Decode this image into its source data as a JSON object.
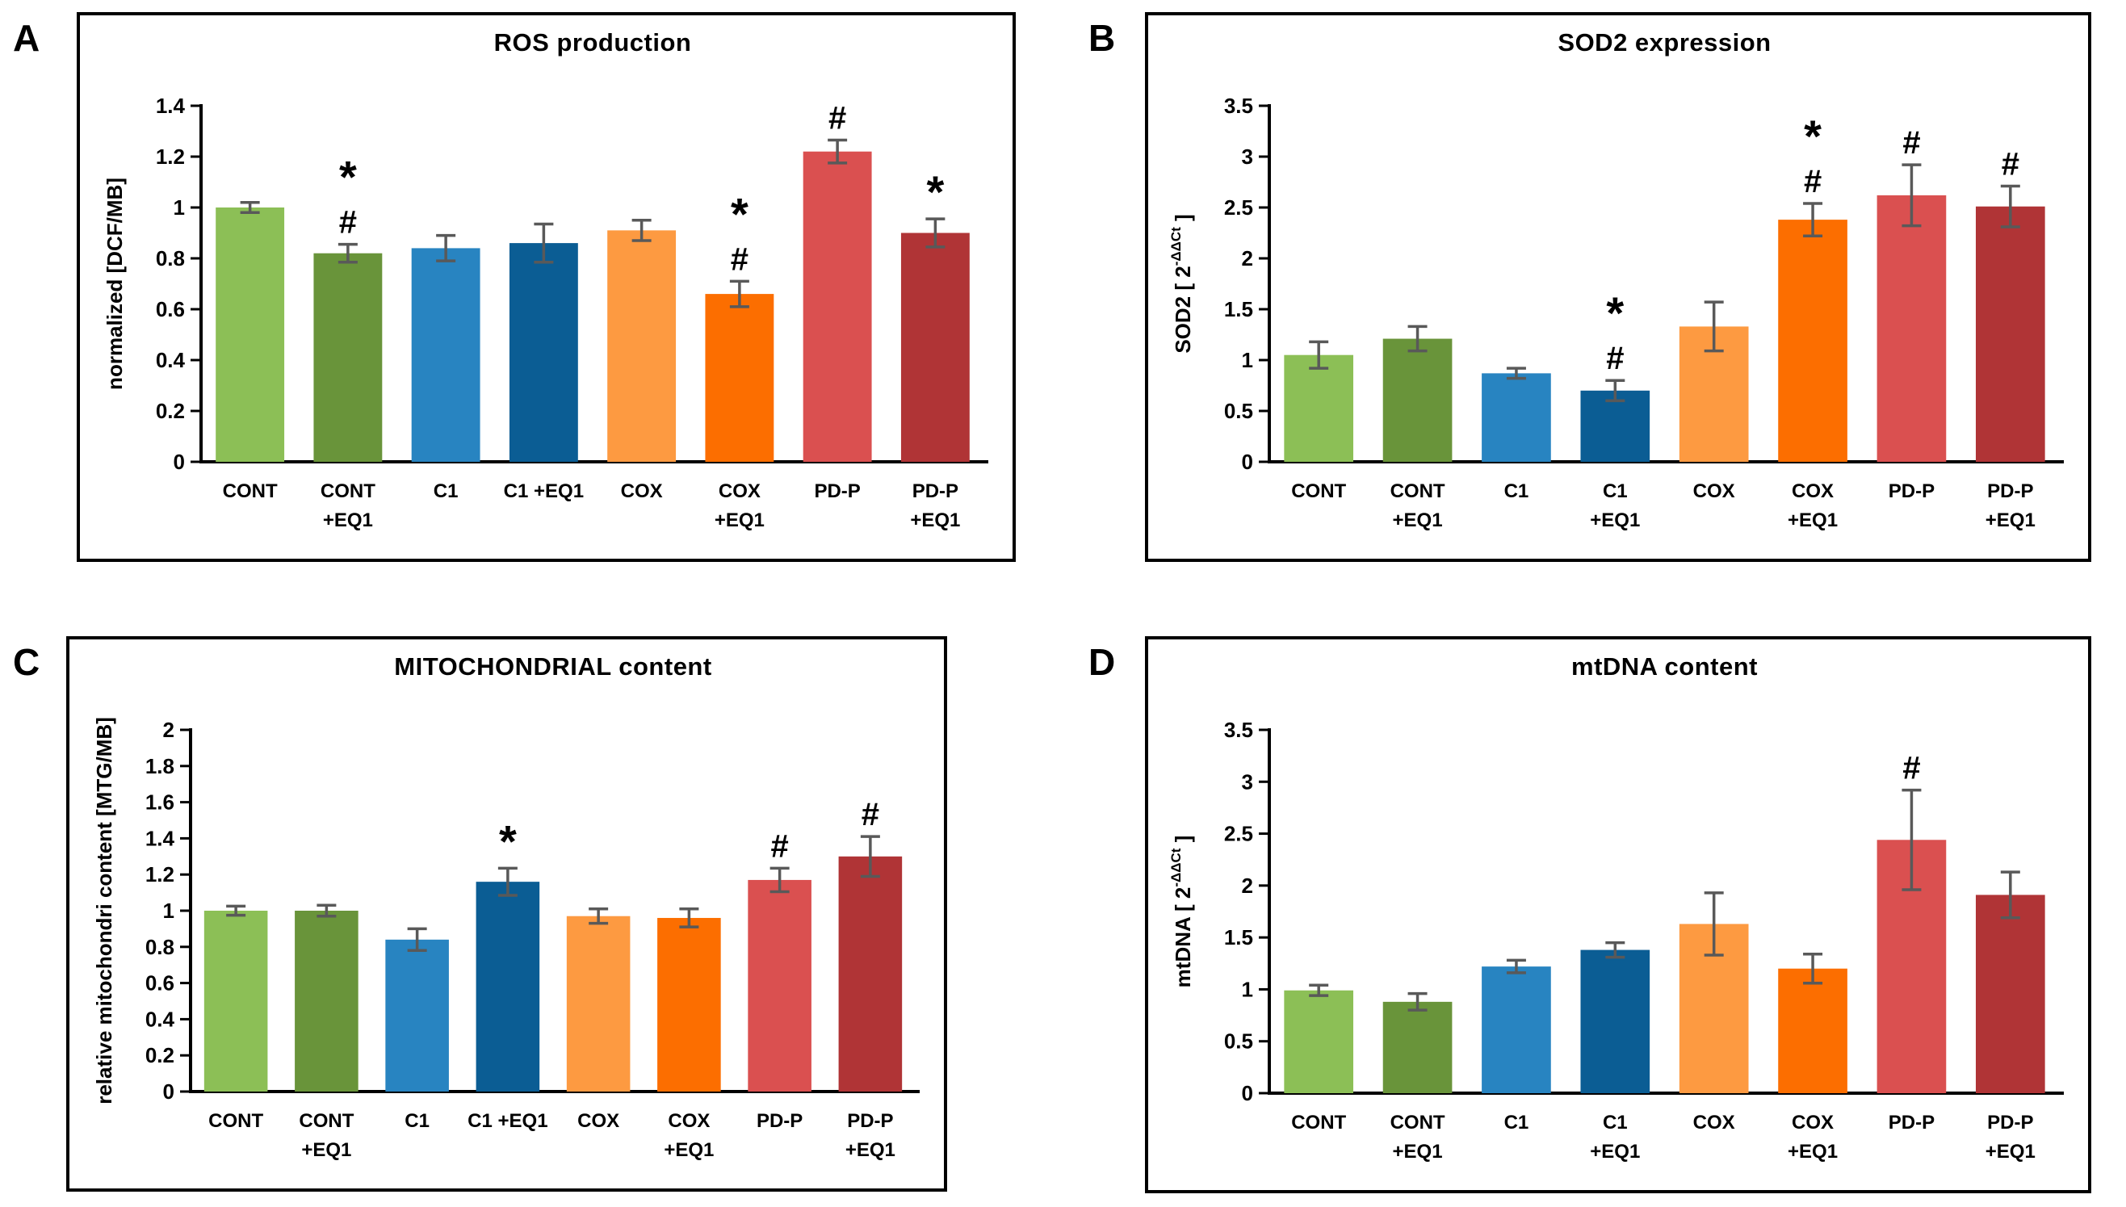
{
  "figure": {
    "background": "#ffffff",
    "axis_color": "#000000",
    "error_bar_color": "#595959",
    "bar_colors": [
      "#8CBF56",
      "#69943A",
      "#2884C1",
      "#0B5D94",
      "#FD9A41",
      "#FC6E00",
      "#DA5050",
      "#B03436"
    ],
    "significance_symbols": {
      "asterisk": "*",
      "hash": "#"
    }
  },
  "chart_data": [
    {
      "panel": "A",
      "type": "bar",
      "title": "ROS production",
      "ylabel_pre": "normalized  [DCF/MB]",
      "ylabel_sup": "",
      "ylabel_post": "",
      "ylim": [
        0,
        1.4
      ],
      "ystep": 0.2,
      "grid": false,
      "legend": "none",
      "categories": [
        "CONT",
        "CONT +EQ1",
        "C1",
        "C1 +EQ1",
        "COX",
        "COX +EQ1",
        "PD-P",
        "PD-P +EQ1"
      ],
      "category_lines": [
        [
          "CONT"
        ],
        [
          "CONT",
          "+EQ1"
        ],
        [
          "C1"
        ],
        [
          "C1 +EQ1"
        ],
        [
          "COX"
        ],
        [
          "COX",
          "+EQ1"
        ],
        [
          "PD-P"
        ],
        [
          "PD-P",
          "+EQ1"
        ]
      ],
      "values": [
        1.0,
        0.82,
        0.84,
        0.86,
        0.91,
        0.66,
        1.22,
        0.9
      ],
      "errors": [
        0.02,
        0.035,
        0.05,
        0.075,
        0.04,
        0.05,
        0.045,
        0.055
      ],
      "annotations": [
        "",
        "*#",
        "",
        "",
        "",
        "*#",
        "#",
        "*"
      ]
    },
    {
      "panel": "B",
      "type": "bar",
      "title": "SOD2 expression",
      "ylabel_pre": "SOD2  [ 2",
      "ylabel_sup": "-ΔΔCt",
      "ylabel_post": " ]",
      "ylim": [
        0,
        3.5
      ],
      "ystep": 0.5,
      "grid": false,
      "legend": "none",
      "categories": [
        "CONT",
        "CONT +EQ1",
        "C1",
        "C1 +EQ1",
        "COX",
        "COX +EQ1",
        "PD-P",
        "PD-P +EQ1"
      ],
      "category_lines": [
        [
          "CONT"
        ],
        [
          "CONT",
          "+EQ1"
        ],
        [
          "C1"
        ],
        [
          "C1",
          "+EQ1"
        ],
        [
          "COX"
        ],
        [
          "COX",
          "+EQ1"
        ],
        [
          "PD-P"
        ],
        [
          "PD-P",
          "+EQ1"
        ]
      ],
      "values": [
        1.05,
        1.21,
        0.87,
        0.7,
        1.33,
        2.38,
        2.62,
        2.51
      ],
      "errors": [
        0.13,
        0.12,
        0.05,
        0.1,
        0.24,
        0.16,
        0.3,
        0.2
      ],
      "annotations": [
        "",
        "",
        "",
        "*#",
        "",
        "*#",
        "#",
        "#"
      ]
    },
    {
      "panel": "C",
      "type": "bar",
      "title": "MITOCHONDRIAL content",
      "ylabel_pre": "relative mitochondri content [MTG/MB]",
      "ylabel_sup": "",
      "ylabel_post": "",
      "ylim": [
        0,
        2
      ],
      "ystep": 0.2,
      "grid": false,
      "legend": "none",
      "categories": [
        "CONT",
        "CONT +EQ1",
        "C1",
        "C1 +EQ1",
        "COX",
        "COX +EQ1",
        "PD-P",
        "PD-P +EQ1"
      ],
      "category_lines": [
        [
          "CONT"
        ],
        [
          "CONT",
          "+EQ1"
        ],
        [
          "C1"
        ],
        [
          "C1 +EQ1"
        ],
        [
          "COX"
        ],
        [
          "COX",
          "+EQ1"
        ],
        [
          "PD-P"
        ],
        [
          "PD-P",
          "+EQ1"
        ]
      ],
      "values": [
        1.0,
        1.0,
        0.84,
        1.16,
        0.97,
        0.96,
        1.17,
        1.3
      ],
      "errors": [
        0.025,
        0.03,
        0.06,
        0.075,
        0.04,
        0.05,
        0.065,
        0.11
      ],
      "annotations": [
        "",
        "",
        "",
        "*",
        "",
        "",
        "#",
        "#"
      ]
    },
    {
      "panel": "D",
      "type": "bar",
      "title": "mtDNA content",
      "ylabel_pre": "mtDNA  [ 2",
      "ylabel_sup": "-ΔΔCt",
      "ylabel_post": " ]",
      "ylim": [
        0,
        3.5
      ],
      "ystep": 0.5,
      "grid": false,
      "legend": "none",
      "categories": [
        "CONT",
        "CONT +EQ1",
        "C1",
        "C1 +EQ1",
        "COX",
        "COX +EQ1",
        "PD-P",
        "PD-P +EQ1"
      ],
      "category_lines": [
        [
          "CONT"
        ],
        [
          "CONT",
          "+EQ1"
        ],
        [
          "C1"
        ],
        [
          "C1",
          "+EQ1"
        ],
        [
          "COX"
        ],
        [
          "COX",
          "+EQ1"
        ],
        [
          "PD-P"
        ],
        [
          "PD-P",
          "+EQ1"
        ]
      ],
      "values": [
        0.99,
        0.88,
        1.22,
        1.38,
        1.63,
        1.2,
        2.44,
        1.91
      ],
      "errors": [
        0.05,
        0.08,
        0.06,
        0.07,
        0.3,
        0.14,
        0.48,
        0.22
      ],
      "annotations": [
        "",
        "",
        "",
        "",
        "",
        "",
        "#",
        ""
      ]
    }
  ]
}
